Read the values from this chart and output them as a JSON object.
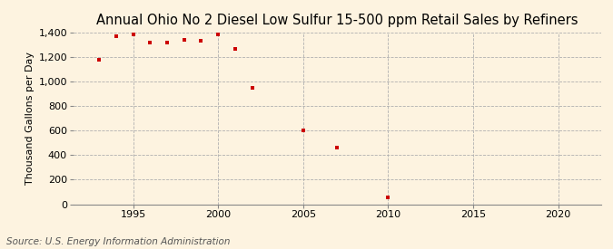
{
  "title": "Annual Ohio No 2 Diesel Low Sulfur 15-500 ppm Retail Sales by Refiners",
  "ylabel": "Thousand Gallons per Day",
  "source": "Source: U.S. Energy Information Administration",
  "years": [
    1993,
    1994,
    1995,
    1996,
    1997,
    1998,
    1999,
    2000,
    2001,
    2002,
    2005,
    2007,
    2010
  ],
  "values": [
    1175,
    1370,
    1385,
    1320,
    1315,
    1340,
    1330,
    1380,
    1265,
    950,
    600,
    460,
    55
  ],
  "marker_color": "#cc0000",
  "marker": "s",
  "marker_size": 3.5,
  "xlim": [
    1991.5,
    2022.5
  ],
  "ylim": [
    0,
    1400
  ],
  "yticks": [
    0,
    200,
    400,
    600,
    800,
    1000,
    1200,
    1400
  ],
  "xticks": [
    1995,
    2000,
    2005,
    2010,
    2015,
    2020
  ],
  "grid_color": "#b0b0b0",
  "bg_color": "#fdf3e0",
  "title_fontsize": 10.5,
  "label_fontsize": 8,
  "tick_fontsize": 8,
  "source_fontsize": 7.5
}
